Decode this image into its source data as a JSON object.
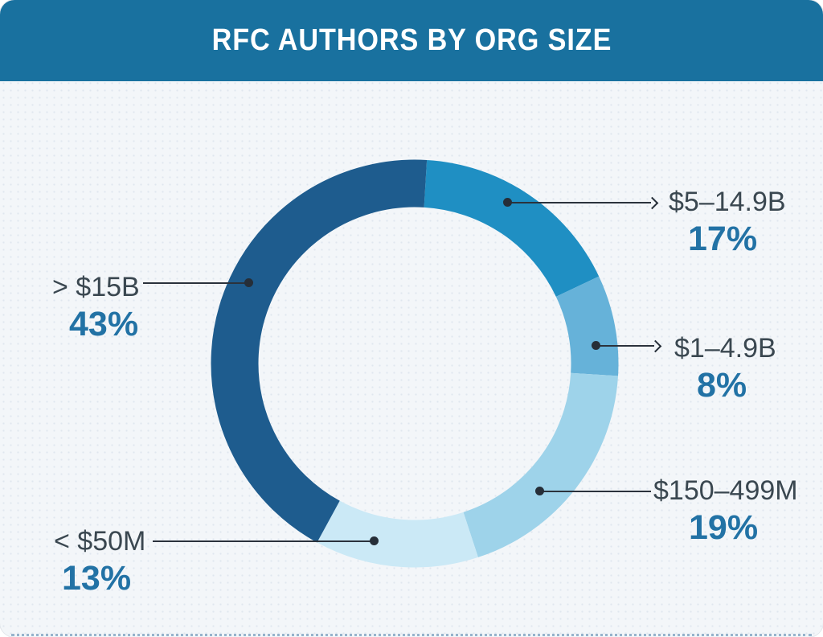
{
  "header": {
    "title": "RFC AUTHORS BY ORG SIZE"
  },
  "chart_data": {
    "type": "pie",
    "subtype": "donut",
    "title": "RFC Authors by Org Size",
    "unit": "%",
    "start_angle_deg": 3.5,
    "legend_position": "callout-labels",
    "categories": [
      "$5–14.9B",
      "$1–4.9B",
      "$150–499M",
      "< $50M",
      "> $15B"
    ],
    "values": [
      17,
      8,
      19,
      13,
      43
    ],
    "segments": [
      {
        "label": "$5–14.9B",
        "value": 17,
        "display": "17%",
        "color": "#1f8fc3"
      },
      {
        "label": "$1–4.9B",
        "value": 8,
        "display": "8%",
        "color": "#66b2d9"
      },
      {
        "label": "$150–499M",
        "value": 19,
        "display": "19%",
        "color": "#9ed3ea"
      },
      {
        "label": "< $50M",
        "value": 13,
        "display": "13%",
        "color": "#cbe9f6"
      },
      {
        "label": "> $15B",
        "value": 43,
        "display": "43%",
        "color": "#1e5c8e"
      }
    ]
  },
  "colors": {
    "banner_bg": "#19719f",
    "card_bg": "#f3f6f9",
    "title_text": "#ffffff",
    "label_text": "#3a4750",
    "percent_text": "#2272a5",
    "leader_line": "#2b323c"
  }
}
